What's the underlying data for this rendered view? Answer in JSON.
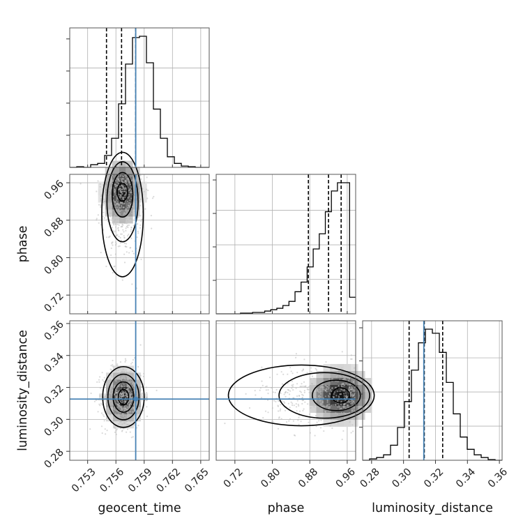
{
  "chart_data": {
    "type": "corner",
    "parameters": [
      "geocent_time",
      "phase",
      "luminosity_distance"
    ],
    "ranges": {
      "geocent_time": [
        0.7511,
        0.7659
      ],
      "phase": [
        0.68,
        0.978
      ],
      "luminosity_distance": [
        0.2744,
        0.3617
      ]
    },
    "ticks": {
      "geocent_time": [
        0.753,
        0.756,
        0.759,
        0.762,
        0.765
      ],
      "phase": [
        0.72,
        0.8,
        0.88,
        0.96
      ],
      "luminosity_distance": [
        0.28,
        0.3,
        0.32,
        0.34,
        0.36
      ]
    },
    "tick_labels": {
      "geocent_time": [
        "0.753",
        "0.756",
        "0.759",
        "0.762",
        "0.765"
      ],
      "phase": [
        "0.72",
        "0.80",
        "0.88",
        "0.96"
      ],
      "luminosity_distance": [
        "0.28",
        "0.30",
        "0.32",
        "0.34",
        "0.36"
      ]
    },
    "axis_labels": {
      "x": [
        "geocent_time",
        "phase",
        "luminosity_distance"
      ],
      "y": [
        "phase",
        "luminosity_distance"
      ]
    },
    "truths": {
      "geocent_time": 0.7581,
      "phase": null,
      "luminosity_distance": 0.3127
    },
    "truth_color": "#4682b4",
    "quantile_lines": {
      "geocent_time": [
        0.755,
        0.7566,
        0.7581
      ],
      "phase": [
        0.877,
        0.92,
        0.947
      ],
      "luminosity_distance": [
        0.3035,
        0.313,
        0.3245
      ]
    },
    "histograms": {
      "geocent_time": {
        "edges": [
          0.7511,
          0.7659
        ],
        "counts": [
          0,
          0.5,
          0,
          2,
          3,
          9,
          22,
          48,
          78,
          98,
          99,
          79,
          44,
          22,
          8,
          3,
          1,
          0.5,
          0,
          0
        ]
      },
      "phase": {
        "edges": [
          0.68,
          0.978
        ],
        "counts": [
          0,
          0,
          0,
          0,
          0.5,
          0.5,
          1,
          1,
          2,
          3,
          4,
          6,
          9,
          16,
          23,
          34,
          47,
          58,
          74,
          89,
          95,
          95,
          12
        ]
      },
      "luminosity_distance": {
        "edges": [
          0.2744,
          0.3617
        ],
        "counts": [
          0,
          1,
          2,
          4,
          11,
          24,
          43,
          66,
          86,
          96,
          93,
          79,
          57,
          34,
          17,
          8,
          4,
          2,
          0.5,
          0
        ]
      }
    },
    "pairs": [
      {
        "x": "geocent_time",
        "y": "phase",
        "peak": [
          0.7567,
          0.94
        ],
        "sigma": [
          0.0011,
          0.038
        ],
        "skew": "left-tail-in-y"
      },
      {
        "x": "geocent_time",
        "y": "luminosity_distance",
        "peak": [
          0.7568,
          0.314
        ],
        "sigma": [
          0.0011,
          0.0095
        ],
        "skew": "none"
      },
      {
        "x": "phase",
        "y": "luminosity_distance",
        "peak": [
          0.946,
          0.315
        ],
        "sigma": [
          0.038,
          0.0095
        ],
        "skew": "left-tail-in-x"
      }
    ],
    "colors": {
      "hist": "#000000",
      "contour": "#000000",
      "points": "#bcbcbc",
      "grid": "#b0b0b0"
    }
  }
}
